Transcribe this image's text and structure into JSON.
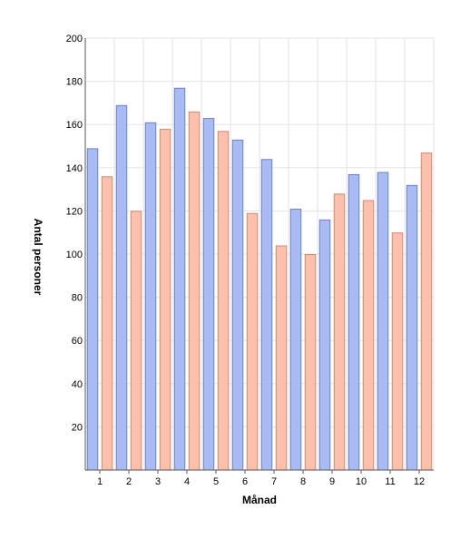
{
  "chart_data": {
    "type": "bar",
    "title": "",
    "xlabel": "Månad",
    "ylabel": "Antal personer",
    "categories": [
      "1",
      "2",
      "3",
      "4",
      "5",
      "6",
      "7",
      "8",
      "9",
      "10",
      "11",
      "12"
    ],
    "series": [
      {
        "color": "#a9bbf5",
        "stroke": "#6f7fc0",
        "values": [
          149,
          169,
          161,
          177,
          163,
          153,
          144,
          121,
          116,
          137,
          138,
          132
        ]
      },
      {
        "color": "#fcc0ac",
        "stroke": "#c98a78",
        "values": [
          136,
          120,
          158,
          166,
          157,
          119,
          104,
          100,
          128,
          125,
          110,
          147
        ]
      }
    ],
    "ylim": [
      0,
      200
    ],
    "yticks": [
      20,
      40,
      60,
      80,
      100,
      120,
      140,
      160,
      180,
      200
    ],
    "grid": true,
    "gridColor": "#e3e3e3",
    "legend": "none"
  }
}
